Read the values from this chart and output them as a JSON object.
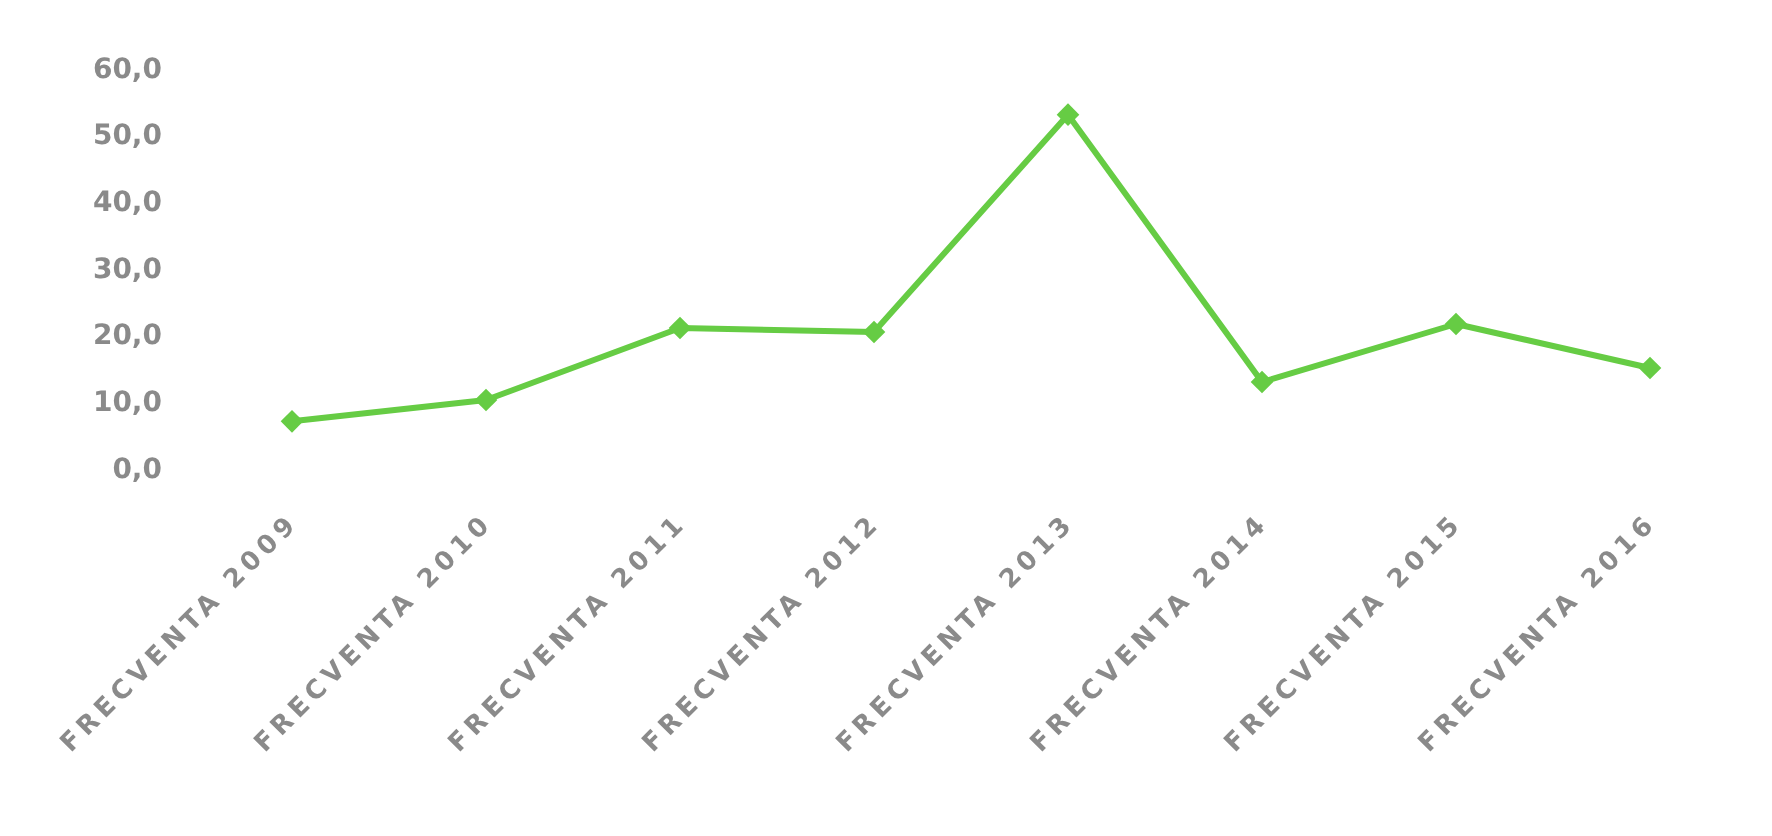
{
  "chart_data": {
    "type": "line",
    "categories": [
      "FRECVENTA 2009",
      "FRECVENTA 2010",
      "FRECVENTA 2011",
      "FRECVENTA 2012",
      "FRECVENTA 2013",
      "FRECVENTA 2014",
      "FRECVENTA 2015",
      "FRECVENTA 2016"
    ],
    "series": [
      {
        "color": "#66cc44",
        "values": [
          7,
          10.2,
          21,
          20.4,
          53,
          12.9,
          21.6,
          15
        ]
      }
    ],
    "ylim": [
      0,
      60
    ],
    "yticks": [
      {
        "value": 0,
        "label": "0,0"
      },
      {
        "value": 10,
        "label": "10,0"
      },
      {
        "value": 20,
        "label": "20,0"
      },
      {
        "value": 30,
        "label": "30,0"
      },
      {
        "value": 40,
        "label": "40,0"
      },
      {
        "value": 50,
        "label": "50,0"
      },
      {
        "value": 60,
        "label": "60,0"
      }
    ],
    "marker": "diamond",
    "line_style": "solid",
    "grid": false
  }
}
